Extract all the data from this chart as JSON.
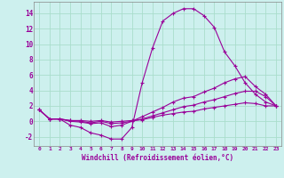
{
  "xlabel": "Windchill (Refroidissement éolien,°C)",
  "background_color": "#cdf0ee",
  "grid_color": "#aaddcc",
  "line_color": "#990099",
  "xlim": [
    -0.5,
    23.5
  ],
  "ylim": [
    -3.2,
    15.5
  ],
  "yticks": [
    -2,
    0,
    2,
    4,
    6,
    8,
    10,
    12,
    14
  ],
  "xticks": [
    0,
    1,
    2,
    3,
    4,
    5,
    6,
    7,
    8,
    9,
    10,
    11,
    12,
    13,
    14,
    15,
    16,
    17,
    18,
    19,
    20,
    21,
    22,
    23
  ],
  "series": [
    [
      1.5,
      0.3,
      0.3,
      -0.5,
      -0.8,
      -1.5,
      -1.8,
      -2.3,
      -2.3,
      -0.8,
      5.0,
      9.5,
      13.0,
      14.0,
      14.6,
      14.6,
      13.7,
      12.2,
      9.0,
      7.2,
      5.0,
      3.5,
      2.5,
      2.0
    ],
    [
      1.5,
      0.3,
      0.3,
      0.0,
      -0.1,
      -0.3,
      -0.2,
      -0.7,
      -0.5,
      0.0,
      0.6,
      1.2,
      1.8,
      2.5,
      3.0,
      3.2,
      3.8,
      4.3,
      5.0,
      5.5,
      5.8,
      4.5,
      3.5,
      2.0
    ],
    [
      1.5,
      0.3,
      0.3,
      0.1,
      0.0,
      -0.2,
      0.0,
      -0.3,
      -0.2,
      0.0,
      0.3,
      0.7,
      1.1,
      1.5,
      1.9,
      2.1,
      2.5,
      2.8,
      3.2,
      3.6,
      3.9,
      3.9,
      3.2,
      2.0
    ],
    [
      1.5,
      0.3,
      0.3,
      0.1,
      0.1,
      0.0,
      0.1,
      -0.1,
      0.0,
      0.1,
      0.2,
      0.5,
      0.8,
      1.0,
      1.2,
      1.3,
      1.6,
      1.8,
      2.0,
      2.2,
      2.4,
      2.3,
      2.0,
      2.0
    ]
  ]
}
